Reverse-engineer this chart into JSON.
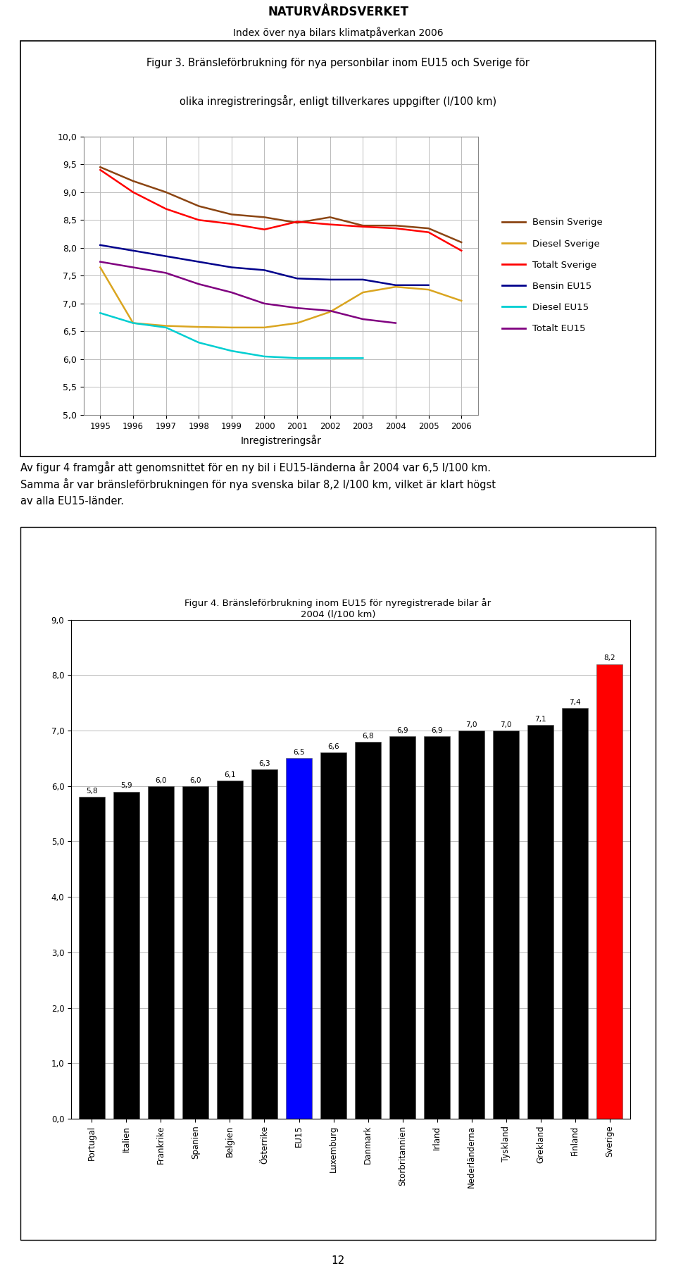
{
  "page_title": "NATURVÅRDSVERKET",
  "page_subtitle": "Index över nya bilars klimatpåverkan 2006",
  "fig3_title_line1": "Figur 3. Bränsleförbrukning för nya personbilar inom EU15 och Sverige för",
  "fig3_title_line2": "olika inregistreringsår, enligt tillverkares uppgifter (l/100 km)",
  "years": [
    1995,
    1996,
    1997,
    1998,
    1999,
    2000,
    2001,
    2002,
    2003,
    2004,
    2005,
    2006
  ],
  "bensin_sverige": [
    9.45,
    9.2,
    9.0,
    8.75,
    8.6,
    8.55,
    8.45,
    8.55,
    8.4,
    8.4,
    8.35,
    8.1
  ],
  "diesel_sverige": [
    7.65,
    6.65,
    6.6,
    6.58,
    6.57,
    6.57,
    6.65,
    6.85,
    7.2,
    7.3,
    7.25,
    7.05
  ],
  "totalt_sverige": [
    9.4,
    9.0,
    8.7,
    8.5,
    8.43,
    8.33,
    8.47,
    8.42,
    8.38,
    8.35,
    8.28,
    7.95
  ],
  "bensin_eu15": [
    8.05,
    7.95,
    7.85,
    7.75,
    7.65,
    7.6,
    7.45,
    7.43,
    7.43,
    7.33,
    7.33,
    null
  ],
  "diesel_eu15": [
    6.83,
    6.65,
    6.57,
    6.3,
    6.15,
    6.05,
    6.02,
    6.02,
    6.02,
    null,
    null,
    null
  ],
  "totalt_eu15": [
    7.75,
    7.65,
    7.55,
    7.35,
    7.2,
    7.0,
    6.92,
    6.87,
    6.72,
    6.65,
    null,
    null
  ],
  "line_colors": {
    "bensin_sverige": "#8B4513",
    "diesel_sverige": "#DAA520",
    "totalt_sverige": "#FF0000",
    "bensin_eu15": "#00008B",
    "diesel_eu15": "#00CED1",
    "totalt_eu15": "#800080"
  },
  "ylim": [
    5.0,
    10.0
  ],
  "yticks": [
    5.0,
    5.5,
    6.0,
    6.5,
    7.0,
    7.5,
    8.0,
    8.5,
    9.0,
    9.5,
    10.0
  ],
  "xlabel": "Inregistreringsår",
  "fig4_title_line1": "Figur 4. Bränsleförbrukning inom EU15 för nyregistrerade bilar år",
  "fig4_title_line2": "2004 (l/100 km)",
  "fig4_categories": [
    "Portugal",
    "Italien",
    "Frankrike",
    "Spanien",
    "Belgien",
    "Österrike",
    "EU15",
    "Luxemburg",
    "Danmark",
    "Storbritannien",
    "Irland",
    "Nederländerna",
    "Tyskland",
    "Grekland",
    "Finland",
    "Sverige"
  ],
  "fig4_values": [
    5.8,
    5.9,
    6.0,
    6.0,
    6.1,
    6.3,
    6.5,
    6.6,
    6.8,
    6.9,
    6.9,
    7.0,
    7.0,
    7.1,
    7.4,
    8.2
  ],
  "fig4_bar_colors": [
    "#000000",
    "#000000",
    "#000000",
    "#000000",
    "#000000",
    "#000000",
    "#0000FF",
    "#000000",
    "#000000",
    "#000000",
    "#000000",
    "#000000",
    "#000000",
    "#000000",
    "#000000",
    "#FF0000"
  ],
  "fig4_ylim": [
    0.0,
    9.0
  ],
  "fig4_yticks": [
    0.0,
    1.0,
    2.0,
    3.0,
    4.0,
    5.0,
    6.0,
    7.0,
    8.0,
    9.0
  ],
  "body_text_line1": "Av figur 4 framgår att genomsnittet för en ny bil i EU15-länderna år 2004 var 6,5 l/100 km.",
  "body_text_line2": "Samma år var bränsleförbrukningen för nya svenska bilar 8,2 l/100 km, vilket är klart högst",
  "body_text_line3": "av alla EU15-länder.",
  "page_number": "12"
}
